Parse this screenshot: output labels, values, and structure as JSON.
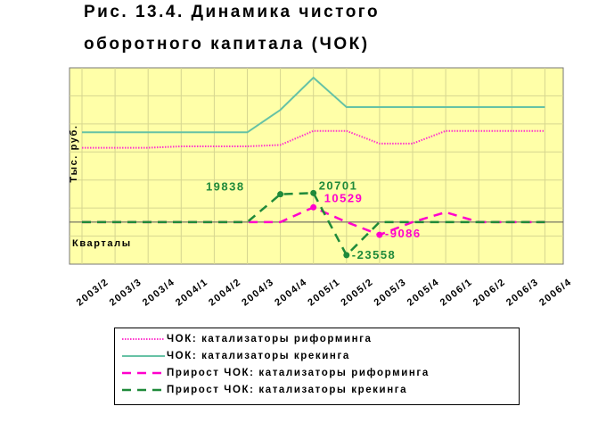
{
  "title_lines": [
    "Рис. 13.4. Динамика чистого",
    "оборотного капитала (ЧОК)"
  ],
  "chart_data": {
    "type": "line",
    "ylabel": "Тыс. руб.",
    "xlabel": "Кварталы",
    "categories": [
      "2003/2",
      "2003/3",
      "2003/4",
      "2004/1",
      "2004/2",
      "2004/3",
      "2004/4",
      "2005/1",
      "2005/2",
      "2005/3",
      "2005/4",
      "2006/1",
      "2006/2",
      "2006/3",
      "2006/4"
    ],
    "ylim": [
      -30000,
      110000
    ],
    "grid": true,
    "legend_position": "bottom",
    "series": [
      {
        "name": "ЧОК: катализаторы риформинга",
        "color": "#ff33cc",
        "style": "dotted",
        "values": [
          53000,
          53000,
          53000,
          54000,
          54000,
          54000,
          55000,
          65000,
          65000,
          56000,
          56000,
          65000,
          65000,
          65000,
          65000
        ]
      },
      {
        "name": "ЧОК: катализаторы крекинга",
        "color": "#66c2a5",
        "style": "solid",
        "values": [
          64000,
          64000,
          64000,
          64000,
          64000,
          64000,
          80000,
          103000,
          82000,
          82000,
          82000,
          82000,
          82000,
          82000,
          82000
        ]
      },
      {
        "name": "Прирост ЧОК: катализаторы риформинга",
        "color": "#ff00cc",
        "style": "dash",
        "values": [
          0,
          0,
          0,
          0,
          0,
          0,
          0,
          10529,
          0,
          -9086,
          0,
          7000,
          0,
          0,
          0
        ]
      },
      {
        "name": "Прирост ЧОК: катализаторы крекинга",
        "color": "#1f8a3a",
        "style": "dash",
        "values": [
          0,
          0,
          0,
          0,
          0,
          0,
          19838,
          20701,
          -23558,
          0,
          0,
          0,
          0,
          0,
          0
        ]
      }
    ],
    "annotations": [
      {
        "text": "19838",
        "series": 3,
        "index": 6,
        "color": "#1f8a3a"
      },
      {
        "text": "20701",
        "series": 3,
        "index": 7,
        "color": "#1f8a3a"
      },
      {
        "text": "10529",
        "series": 2,
        "index": 7,
        "color": "#ff00cc"
      },
      {
        "text": "-9086",
        "series": 2,
        "index": 9,
        "color": "#ff00cc"
      },
      {
        "text": "-23558",
        "series": 3,
        "index": 8,
        "color": "#1f8a3a"
      }
    ]
  }
}
